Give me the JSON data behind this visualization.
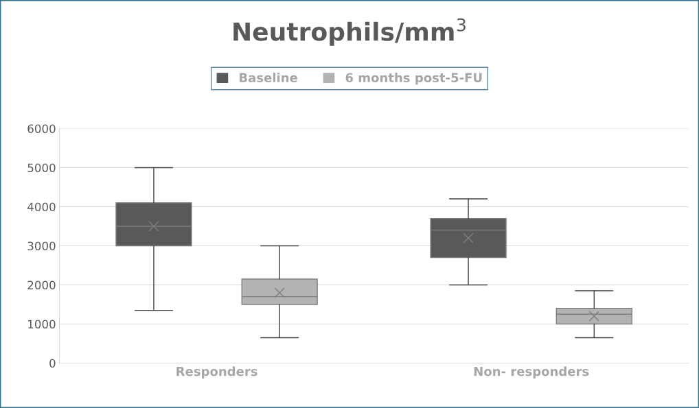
{
  "chart_data": {
    "type": "box",
    "title": "Neutrophils/mm$^{3}$",
    "categories": [
      "Responders",
      "Non- responders"
    ],
    "series": [
      {
        "name": "Baseline",
        "color": "#595959",
        "boxes": [
          {
            "low": 1350,
            "q1": 3000,
            "median": 3500,
            "q3": 4100,
            "high": 5000,
            "mean": 3500
          },
          {
            "low": 2000,
            "q1": 2700,
            "median": 3400,
            "q3": 3700,
            "high": 4200,
            "mean": 3200
          }
        ]
      },
      {
        "name": "6 months post-5-FU",
        "color": "#b3b3b3",
        "boxes": [
          {
            "low": 650,
            "q1": 1500,
            "median": 1700,
            "q3": 2150,
            "high": 3000,
            "mean": 1800
          },
          {
            "low": 650,
            "q1": 1000,
            "median": 1250,
            "q3": 1400,
            "high": 1850,
            "mean": 1200
          }
        ]
      }
    ],
    "ylim": [
      0,
      6000
    ],
    "yticks": [
      0,
      1000,
      2000,
      3000,
      4000,
      5000,
      6000
    ],
    "grid": "y",
    "legend": "top"
  }
}
